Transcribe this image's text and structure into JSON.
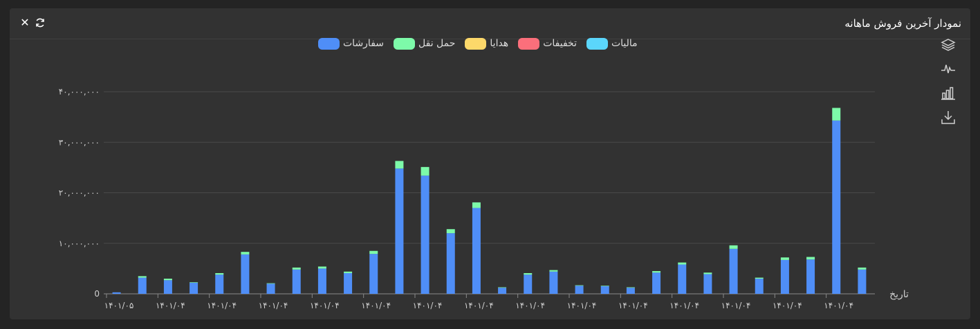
{
  "header": {
    "title": "نمودار آخرین فروش ماهانه"
  },
  "icons": {
    "close": "close-icon",
    "refresh": "refresh-icon",
    "layers": "layers-icon",
    "line": "line-chart-icon",
    "bar": "bar-chart-icon",
    "download": "download-icon"
  },
  "legend": [
    {
      "label": "سفارشات",
      "color": "#4f8ef7"
    },
    {
      "label": "حمل نقل",
      "color": "#7dfaa9"
    },
    {
      "label": "هدایا",
      "color": "#fcd86a"
    },
    {
      "label": "تخفیفات",
      "color": "#fb6f7b"
    },
    {
      "label": "مالیات",
      "color": "#5bd6fb"
    }
  ],
  "chart_data": {
    "type": "bar",
    "stacked": true,
    "grid": true,
    "ylim": [
      0,
      40000000
    ],
    "yticks": [
      0,
      10000000,
      20000000,
      30000000,
      40000000
    ],
    "ytick_labels": [
      "0",
      "۱۰,۰۰۰,۰۰۰",
      "۲۰,۰۰۰,۰۰۰",
      "۳۰,۰۰۰,۰۰۰",
      "۴۰,۰۰۰,۰۰۰"
    ],
    "xlabel": "تاریخ",
    "xtick_labels": [
      "۱۴۰۱/۰۵",
      "۱۴۰۱/۰۴",
      "۱۴۰۱/۰۴",
      "۱۴۰۱/۰۴",
      "۱۴۰۱/۰۴",
      "۱۴۰۱/۰۴",
      "۱۴۰۱/۰۴",
      "۱۴۰۱/۰۴",
      "۱۴۰۱/۰۴",
      "۱۴۰۱/۰۴",
      "۱۴۰۱/۰۴",
      "۱۴۰۱/۰۴",
      "۱۴۰۱/۰۴",
      "۱۴۰۱/۰۴",
      "۱۴۰۱/۰۴"
    ],
    "series": [
      {
        "name": "سفارشات",
        "color": "#4f8ef7",
        "values": [
          300000,
          3200000,
          2700000,
          2200000,
          3800000,
          7800000,
          2000000,
          4800000,
          5000000,
          4100000,
          7900000,
          24800000,
          23400000,
          12000000,
          17000000,
          1200000,
          3800000,
          4400000,
          1600000,
          1500000,
          1200000,
          4200000,
          5800000,
          3900000,
          8900000,
          3000000,
          6700000,
          6800000,
          34300000,
          4800000
        ]
      },
      {
        "name": "حمل نقل",
        "color": "#7dfaa9",
        "values": [
          0,
          300000,
          300000,
          100000,
          300000,
          500000,
          100000,
          400000,
          400000,
          300000,
          600000,
          1500000,
          1700000,
          800000,
          1100000,
          100000,
          300000,
          300000,
          100000,
          100000,
          100000,
          300000,
          400000,
          300000,
          700000,
          200000,
          500000,
          500000,
          2500000,
          400000
        ]
      },
      {
        "name": "هدایا",
        "color": "#fcd86a",
        "values": [
          0,
          0,
          0,
          0,
          0,
          0,
          0,
          0,
          0,
          0,
          0,
          0,
          0,
          0,
          0,
          0,
          0,
          0,
          0,
          0,
          0,
          0,
          0,
          0,
          0,
          0,
          0,
          0,
          0,
          0
        ]
      },
      {
        "name": "تخفیفات",
        "color": "#fb6f7b",
        "values": [
          0,
          0,
          0,
          0,
          0,
          0,
          0,
          0,
          0,
          0,
          0,
          0,
          0,
          0,
          0,
          0,
          0,
          0,
          0,
          0,
          0,
          0,
          0,
          0,
          0,
          0,
          0,
          0,
          0,
          0
        ]
      },
      {
        "name": "مالیات",
        "color": "#5bd6fb",
        "values": [
          0,
          0,
          0,
          0,
          0,
          0,
          0,
          0,
          0,
          0,
          0,
          0,
          0,
          0,
          0,
          0,
          0,
          0,
          0,
          0,
          0,
          0,
          0,
          0,
          0,
          0,
          0,
          0,
          0,
          0
        ]
      }
    ]
  }
}
